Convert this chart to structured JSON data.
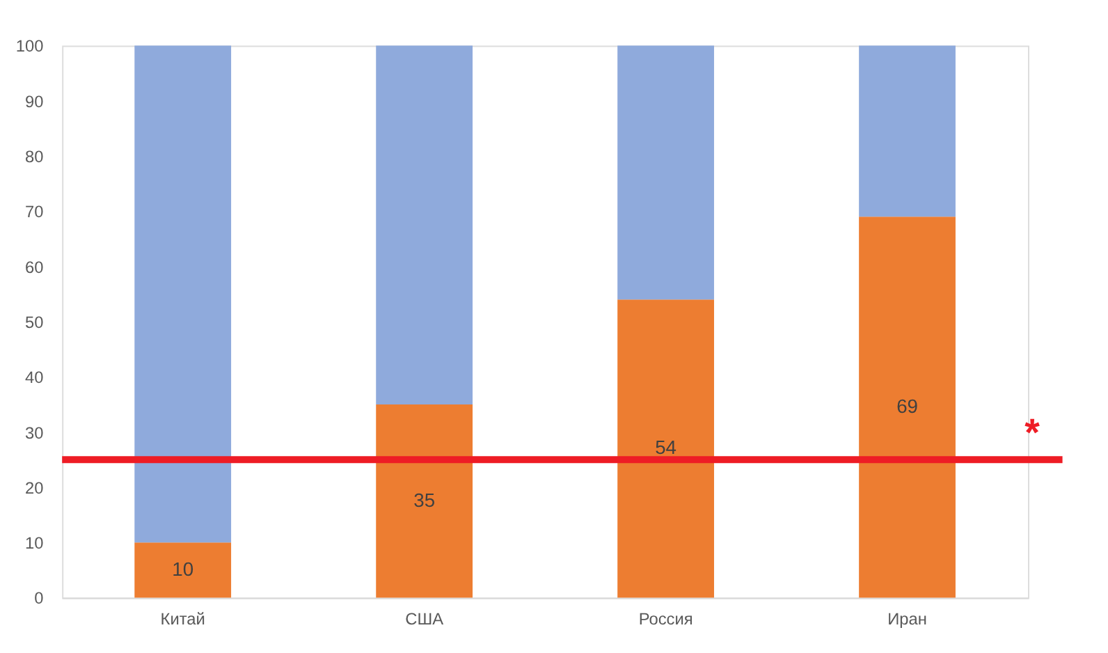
{
  "chart_data": {
    "type": "bar",
    "stacked": true,
    "categories": [
      "Китай",
      "США",
      "Россия",
      "Иран"
    ],
    "series": [
      {
        "color": "#ed7d31",
        "values": [
          10,
          35,
          54,
          69
        ],
        "value_labels": [
          "10",
          "35",
          "54",
          "69"
        ]
      },
      {
        "color": "#8faadc",
        "values": [
          90,
          65,
          46,
          31
        ]
      }
    ],
    "ylim": [
      0,
      100
    ],
    "yticks": [
      0,
      10,
      20,
      30,
      40,
      50,
      60,
      70,
      80,
      90,
      100
    ],
    "grid": false,
    "ref_lines": [
      {
        "axis": "y",
        "value": 25,
        "label": "*",
        "color": "#ee1c25"
      }
    ]
  }
}
